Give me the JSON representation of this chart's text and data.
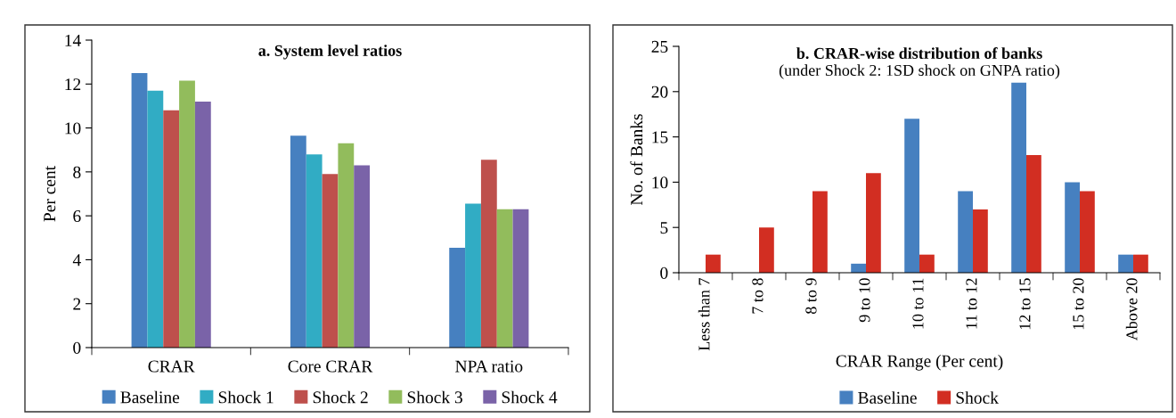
{
  "chart_data": [
    {
      "type": "bar",
      "title": "a. System level ratios",
      "ylabel": "Per cent",
      "categories": [
        "CRAR",
        "Core CRAR",
        "NPA ratio"
      ],
      "series": [
        {
          "name": "Baseline",
          "color": "#4680c0",
          "values": [
            12.5,
            9.65,
            4.55
          ]
        },
        {
          "name": "Shock 1",
          "color": "#31acc4",
          "values": [
            11.7,
            8.8,
            6.55
          ]
        },
        {
          "name": "Shock 2",
          "color": "#be504c",
          "values": [
            10.8,
            7.9,
            8.55
          ]
        },
        {
          "name": "Shock 3",
          "color": "#92bc5c",
          "values": [
            12.15,
            9.3,
            6.3
          ]
        },
        {
          "name": "Shock 4",
          "color": "#7a63a8",
          "values": [
            11.2,
            8.3,
            6.3
          ]
        }
      ],
      "ylim": [
        0,
        14
      ],
      "yticks": [
        0,
        2,
        4,
        6,
        8,
        10,
        12,
        14
      ],
      "grid": false,
      "legend": "bottom"
    },
    {
      "type": "bar",
      "title": "b. CRAR-wise distribution of banks",
      "subtitle": "(under Shock 2: 1SD shock on GNPA ratio)",
      "xlabel": "CRAR Range (Per cent)",
      "ylabel": "No. of Banks",
      "categories": [
        "Less than 7",
        "7 to 8",
        "8 to 9",
        "9 to 10",
        "10 to 11",
        "11 to 12",
        "12 to 15",
        "15 to 20",
        "Above 20"
      ],
      "series": [
        {
          "name": "Baseline",
          "color": "#4680c0",
          "values": [
            0,
            0,
            0,
            1,
            17,
            9,
            21,
            10,
            2
          ]
        },
        {
          "name": "Shock",
          "color": "#d22e22",
          "values": [
            2,
            5,
            9,
            11,
            2,
            7,
            13,
            9,
            2
          ]
        }
      ],
      "ylim": [
        0,
        25
      ],
      "yticks": [
        0,
        5,
        10,
        15,
        20,
        25
      ],
      "grid": false,
      "legend": "bottom"
    }
  ]
}
